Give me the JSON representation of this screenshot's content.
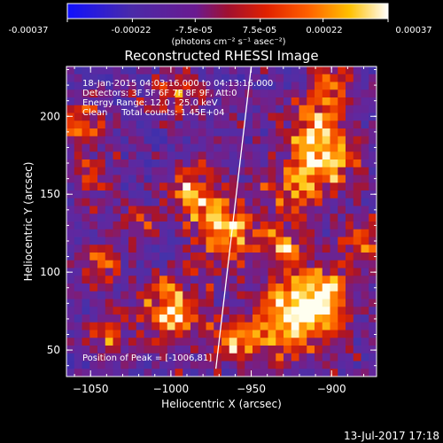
{
  "colorbar": {
    "ticks": [
      "-0.00037",
      "-0.00022",
      "-7.5e-05",
      "7.5e-05",
      "0.00022",
      "0.00037"
    ],
    "tick_values": [
      -0.00037,
      -0.00022,
      -7.5e-05,
      7.5e-05,
      0.00022,
      0.00037
    ],
    "range": [
      -0.00037,
      0.00037
    ],
    "unit_label": "(photons cm⁻² s⁻¹ asec⁻²)"
  },
  "chart_data": {
    "type": "heatmap",
    "title": "Reconstructed RHESSI Image",
    "xlabel": "Heliocentric X (arcsec)",
    "ylabel": "Heliocentric Y (arcsec)",
    "xlim": [
      -1065,
      -872
    ],
    "ylim": [
      33,
      232
    ],
    "xticks": [
      -1050,
      -1000,
      -950,
      -900
    ],
    "xtick_labels": [
      "−1050",
      "−1000",
      "−950",
      "−900"
    ],
    "yticks": [
      50,
      100,
      150,
      200
    ],
    "ytick_labels": [
      "50",
      "100",
      "150",
      "200"
    ],
    "colormap": "rainbow-blue-purple-red-yellow-white",
    "info_lines": [
      "18-Jan-2015 04:03:16.000 to 04:13:16.000",
      "Detectors: 3F 5F 6F 7F 8F 9F, Att:0",
      "Energy Range: 12.0 - 25.0 keV",
      "Clean     Total counts: 1.45E+04"
    ],
    "peak_label": "Position of Peak = [-1006,81]",
    "peak": [
      -1006,
      81
    ],
    "limb_line": {
      "x": [
        -972,
        -950
      ],
      "y": [
        38,
        232
      ]
    }
  },
  "timestamp": "13-Jul-2017 17:18",
  "colors": {
    "background": "#000000",
    "text": "#ffffff",
    "colormap_stops": [
      "#0000ff",
      "#3030c0",
      "#7020a0",
      "#b01020",
      "#ff2000",
      "#ff8000",
      "#ffd000",
      "#ffffff"
    ]
  }
}
